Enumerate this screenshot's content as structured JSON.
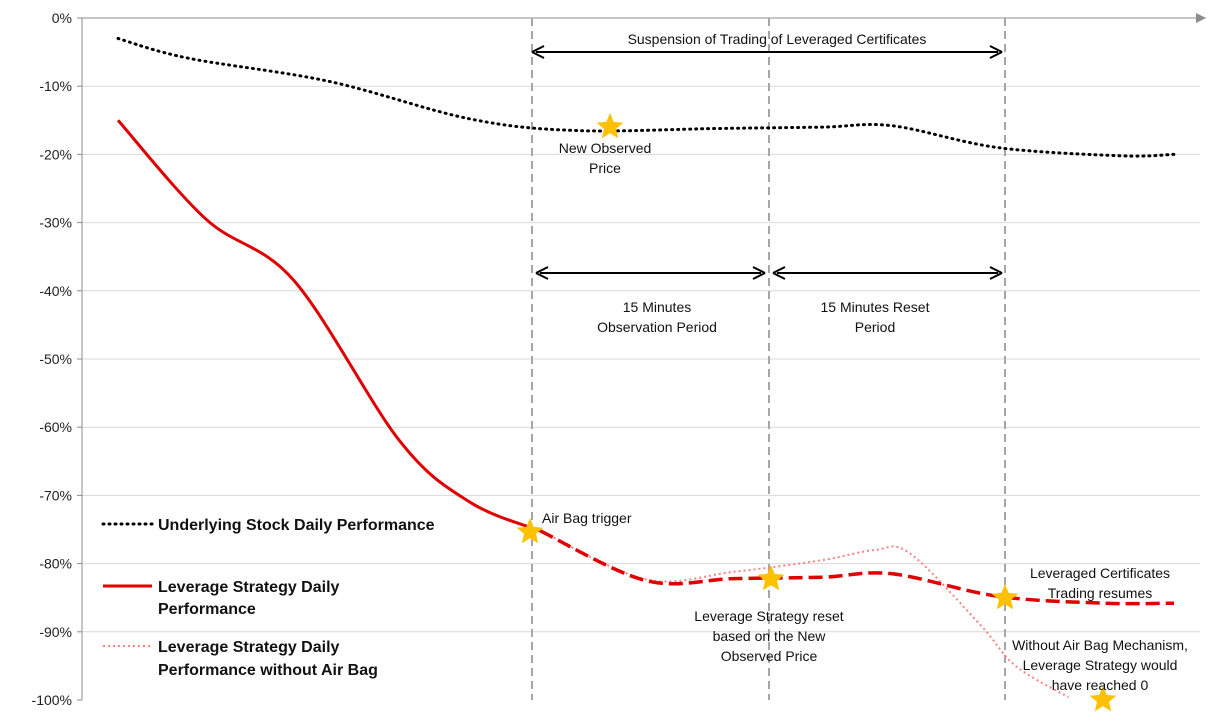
{
  "chart_data": {
    "type": "line",
    "ylim": [
      -100,
      0
    ],
    "y_ticks": [
      "0%",
      "-10%",
      "-20%",
      "-30%",
      "-40%",
      "-50%",
      "-60%",
      "-70%",
      "-80%",
      "-90%",
      "-100%"
    ],
    "grid": "horizontal",
    "legend_position": "bottom-left",
    "series": [
      {
        "name": "Underlying Stock Daily Performance",
        "color": "#000000",
        "style": "dotted",
        "x": [
          0.0,
          0.2,
          0.6,
          1.0,
          1.3,
          1.7,
          2.0,
          2.2,
          2.5,
          2.85,
          3.0
        ],
        "values": [
          -3,
          -5.9,
          -9.3,
          -14.8,
          -16.5,
          -16.2,
          -16,
          -15.8,
          -19,
          -20.2,
          -20
        ]
      },
      {
        "name": "Leverage Strategy Daily Performance",
        "color": "#e00000",
        "style": "solid-then-dashed",
        "x": [
          0.0,
          0.25,
          0.5,
          0.8,
          1.0,
          1.2,
          1.5,
          1.75,
          2.0,
          2.2,
          2.5,
          2.8,
          3.0
        ],
        "values": [
          -15,
          -29.5,
          -38.5,
          -62,
          -71,
          -75.2,
          -82.5,
          -82.2,
          -82,
          -81.5,
          -84.8,
          -85.8,
          -85.8
        ]
      },
      {
        "name": "Leverage Strategy Daily Performance without Air Bag",
        "color": "#ff8080",
        "style": "dotted",
        "x": [
          1.2,
          1.5,
          1.75,
          2.0,
          2.15,
          2.25,
          2.45,
          2.55,
          2.7
        ],
        "values": [
          -75.2,
          -82.3,
          -81.2,
          -79.5,
          -78,
          -78.5,
          -89,
          -95,
          -99.6
        ]
      }
    ],
    "annotations": {
      "suspension": "Suspension of Trading of Leveraged Certificates",
      "observation": [
        "15 Minutes",
        "Observation Period"
      ],
      "reset": [
        "15 Minutes Reset",
        "Period"
      ],
      "new_observed_price": [
        "New Observed",
        "Price"
      ],
      "air_bag_trigger": "Air Bag trigger",
      "strategy_reset": [
        "Leverage Strategy reset",
        "based on the New",
        "Observed Price"
      ],
      "trading_resumes": [
        "Leveraged Certificates",
        "Trading resumes"
      ],
      "without_airbag": [
        "Without Air Bag Mechanism,",
        "Leverage Strategy would",
        "have reached 0"
      ]
    },
    "legend": {
      "underlying": "Underlying Stock Daily Performance",
      "leverage": [
        "Leverage Strategy Daily",
        "Performance"
      ],
      "no_airbag": [
        "Leverage Strategy Daily",
        "Performance without Air Bag"
      ]
    },
    "star_color": "#ffc000",
    "axis_color": "#8c8c8c",
    "grid_color": "#d9d9d9",
    "vline_color": "#a6a6a6"
  }
}
